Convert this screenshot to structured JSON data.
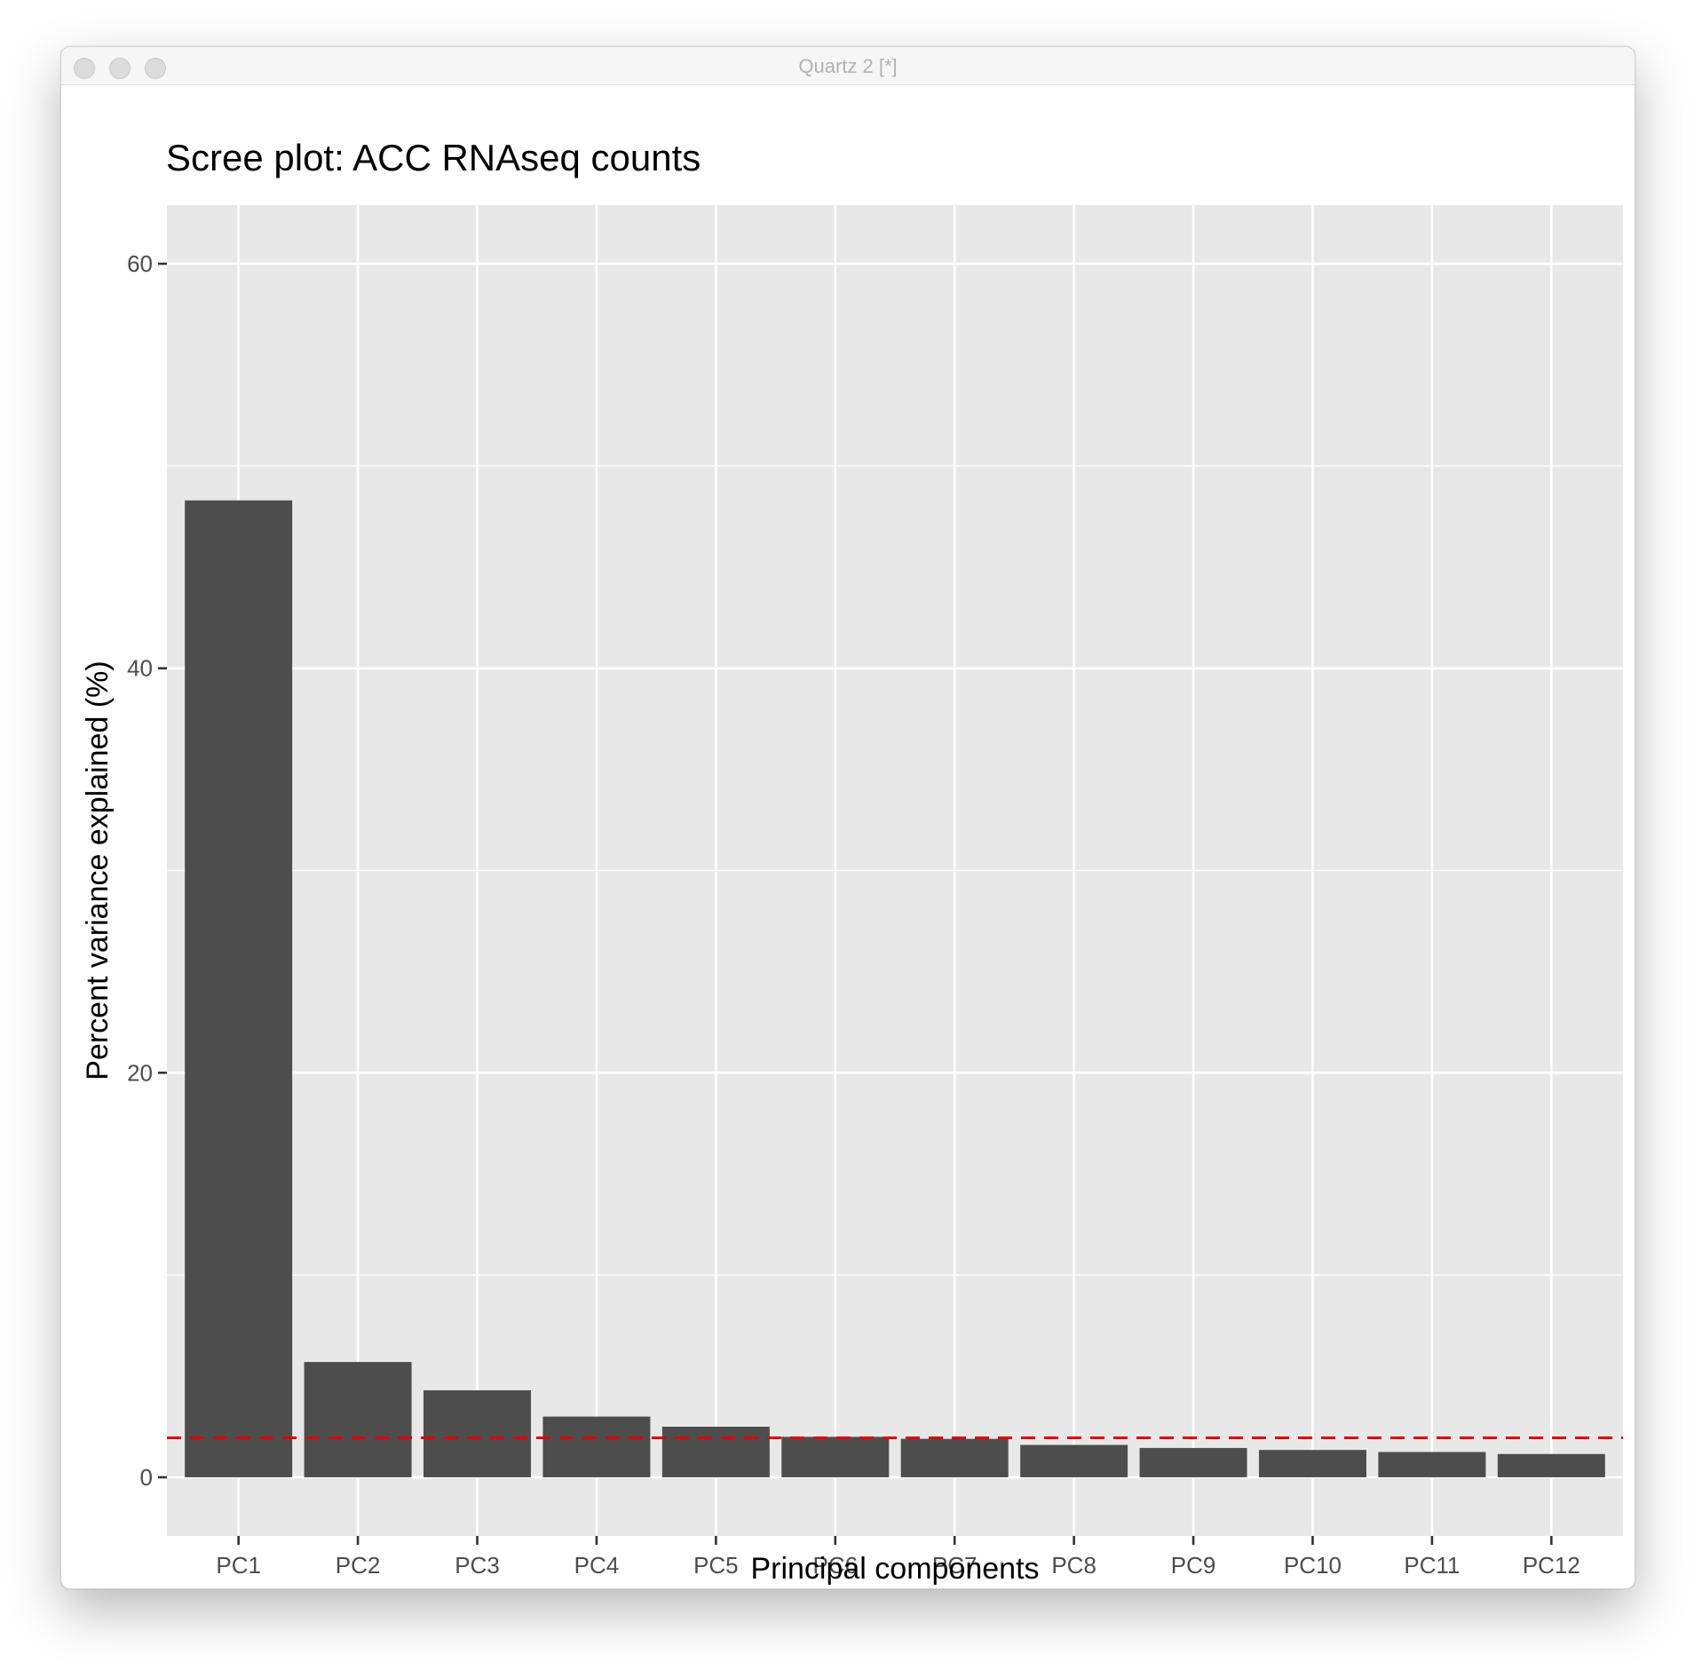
{
  "window": {
    "title": "Quartz 2 [*]"
  },
  "colors": {
    "panel_background": "#e8e8e8",
    "grid": "#ffffff",
    "bar_fill": "#4d4d4d",
    "reference_line": "#e00000",
    "axis_text": "#4d4d4d"
  },
  "chart_data": {
    "type": "bar",
    "title": "Scree plot: ACC RNAseq counts",
    "xlabel": "Principal components",
    "ylabel": "Percent variance explained (%)",
    "categories": [
      "PC1",
      "PC2",
      "PC3",
      "PC4",
      "PC5",
      "PC6",
      "PC7",
      "PC8",
      "PC9",
      "PC10",
      "PC11",
      "PC12"
    ],
    "values": [
      48.3,
      5.7,
      4.3,
      3.0,
      2.5,
      2.0,
      1.9,
      1.6,
      1.45,
      1.35,
      1.25,
      1.15
    ],
    "yticks": [
      0,
      20,
      40,
      60
    ],
    "ylim": [
      -2.9,
      62.9
    ],
    "reference_line": {
      "y": 1.95,
      "style": "dashed"
    },
    "grid": true,
    "legend": "none"
  }
}
